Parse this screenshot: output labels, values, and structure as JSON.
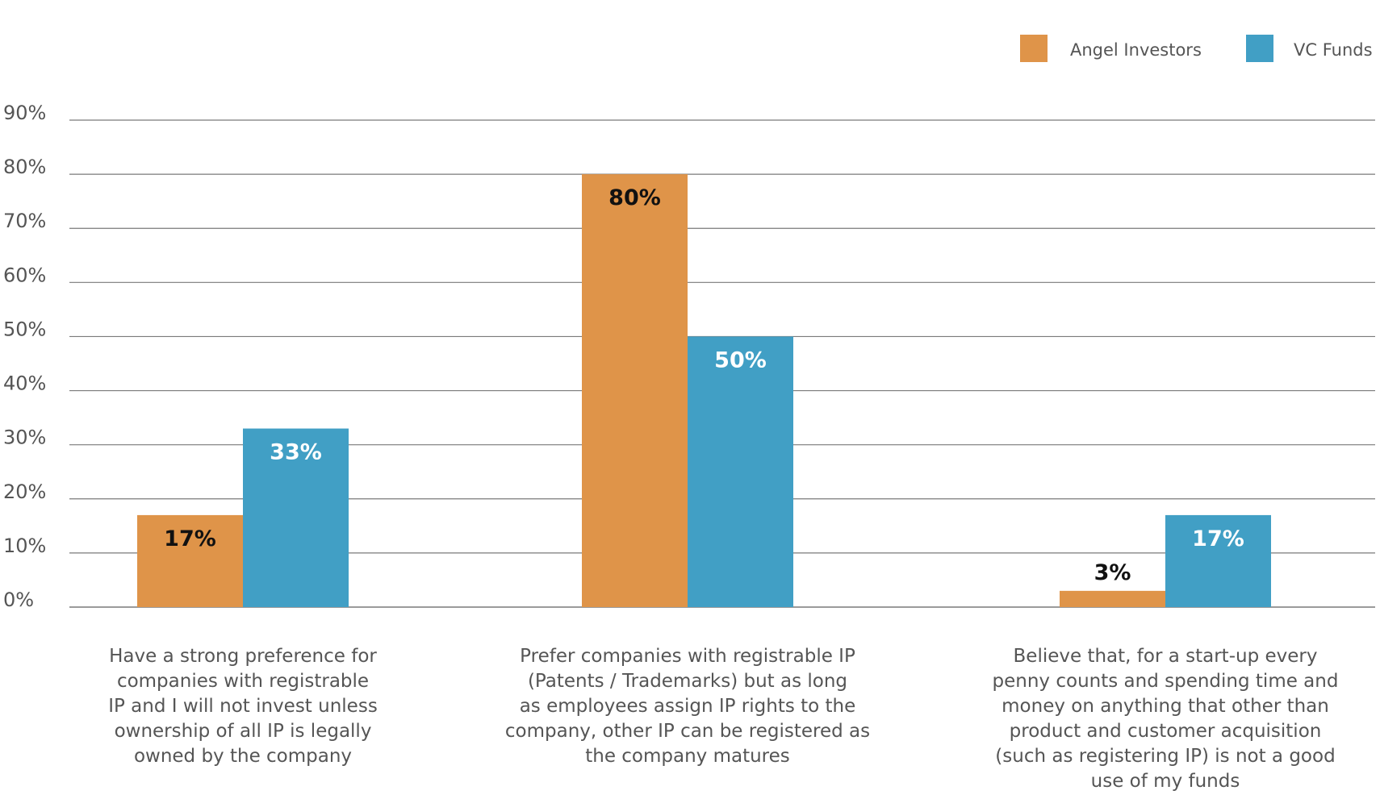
{
  "chart_data": {
    "type": "bar",
    "title": "",
    "xlabel": "",
    "ylabel": "",
    "ylim": [
      0,
      90
    ],
    "yticks": [
      0,
      10,
      20,
      30,
      40,
      50,
      60,
      70,
      80,
      90
    ],
    "ytick_labels": [
      "0%",
      "10%",
      "20%",
      "30%",
      "40%",
      "50%",
      "60%",
      "70%",
      "80%",
      "90%"
    ],
    "grid": true,
    "legend_position": "top-right",
    "categories": [
      "Have a strong preference for companies with registrable IP and I will not invest unless ownership of all IP is legally owned by the company",
      "Prefer companies with registrable IP (Patents / Trademarks) but as long as employees assign IP rights to the company, other IP can be registered as the company matures",
      "Believe that, for a start-up every penny counts and spending time and money on anything that other than product and customer acquisition (such as registering IP) is not a good use of my funds"
    ],
    "category_lines": [
      [
        "Have a strong preference for",
        "companies with registrable",
        "IP and I will not invest unless",
        "ownership of all IP is legally",
        "owned by the company"
      ],
      [
        "Prefer companies with registrable IP",
        "(Patents / Trademarks) but as long",
        "as employees assign IP rights to the",
        "company, other IP can be registered as",
        "the company matures"
      ],
      [
        "Believe that, for a start-up every",
        "penny counts and spending time and",
        "money on anything that other than",
        "product and customer acquisition",
        "(such as registering IP) is not a good",
        "use of my funds"
      ]
    ],
    "series": [
      {
        "name": "Angel Investors",
        "color": "#DF9449",
        "label_color": "#111111",
        "values": [
          17,
          80,
          3
        ],
        "labels": [
          "17%",
          "80%",
          "3%"
        ]
      },
      {
        "name": "VC Funds",
        "color": "#419FC5",
        "label_color": "#ffffff",
        "values": [
          33,
          50,
          17
        ],
        "labels": [
          "33%",
          "50%",
          "17%"
        ]
      }
    ],
    "colors": {
      "grid": "#7a7a7a",
      "text": "#555555"
    }
  }
}
